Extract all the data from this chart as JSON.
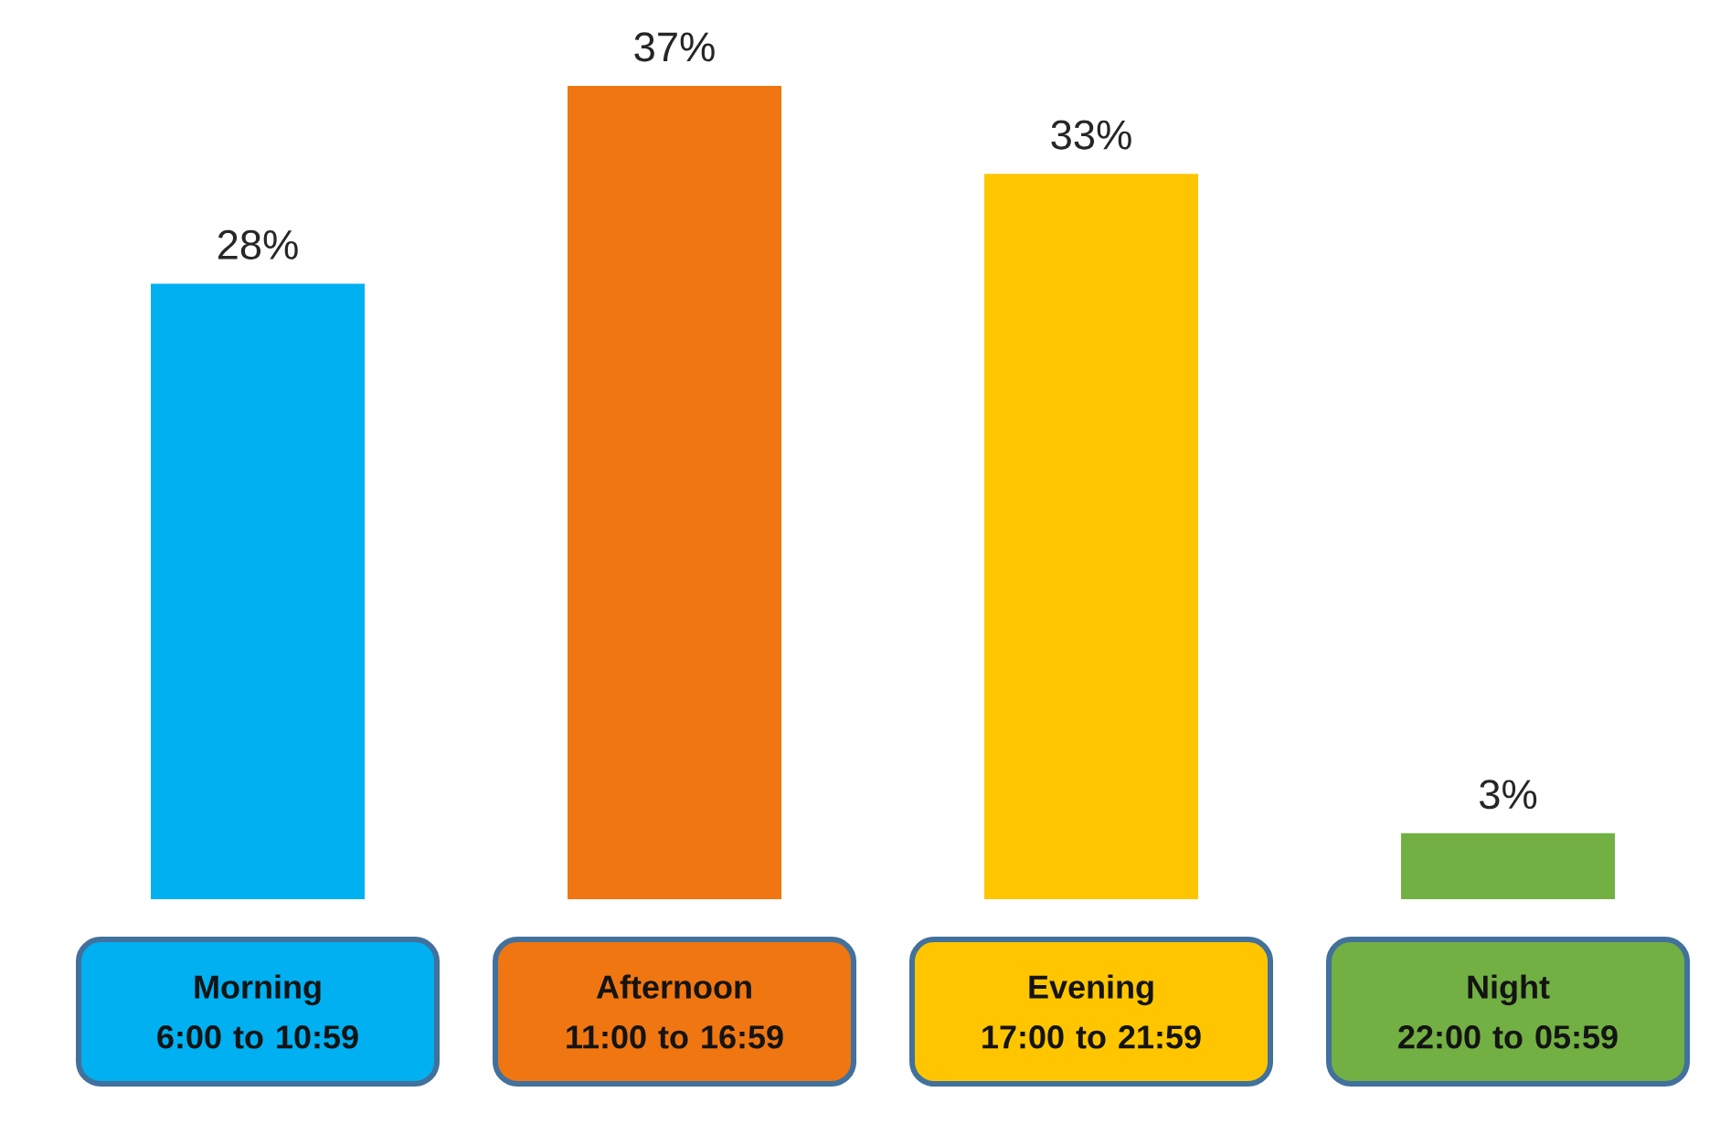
{
  "chart_data": {
    "type": "bar",
    "categories": [
      "Morning\n6:00 to 10:59",
      "Afternoon\n11:00 to 16:59",
      "Evening\n17:00 to 21:59",
      "Night\n22:00 to 05:59"
    ],
    "values": [
      28,
      37,
      33,
      3
    ],
    "colors": [
      "#00b0f0",
      "#f07611",
      "#ffc600",
      "#72b043"
    ],
    "value_labels": [
      "28%",
      "37%",
      "33%",
      "3%"
    ]
  }
}
